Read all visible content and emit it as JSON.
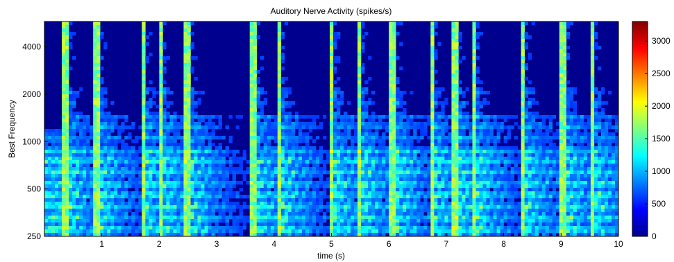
{
  "chart_data": {
    "type": "heatmap",
    "title": "Auditory Nerve Activity (spikes/s)",
    "xlabel": "time (s)",
    "ylabel": "Best  Frequency",
    "xlim": [
      0,
      10
    ],
    "ylim": [
      250,
      5800
    ],
    "y_scale": "log",
    "x_ticks": [
      1,
      2,
      3,
      4,
      5,
      6,
      7,
      8,
      9,
      10
    ],
    "y_ticks": [
      250,
      500,
      1000,
      2000,
      4000
    ],
    "colorbar": {
      "colormap": "jet",
      "range": [
        0,
        3300
      ],
      "ticks": [
        0,
        500,
        1000,
        1500,
        2000,
        2500,
        3000
      ]
    },
    "onsets_s": [
      0.33,
      0.87,
      1.67,
      1.97,
      2.45,
      3.6,
      4.05,
      4.97,
      5.45,
      6.03,
      6.7,
      7.12,
      7.45,
      8.3,
      9.0,
      9.5
    ],
    "background_color": "#00008f"
  }
}
